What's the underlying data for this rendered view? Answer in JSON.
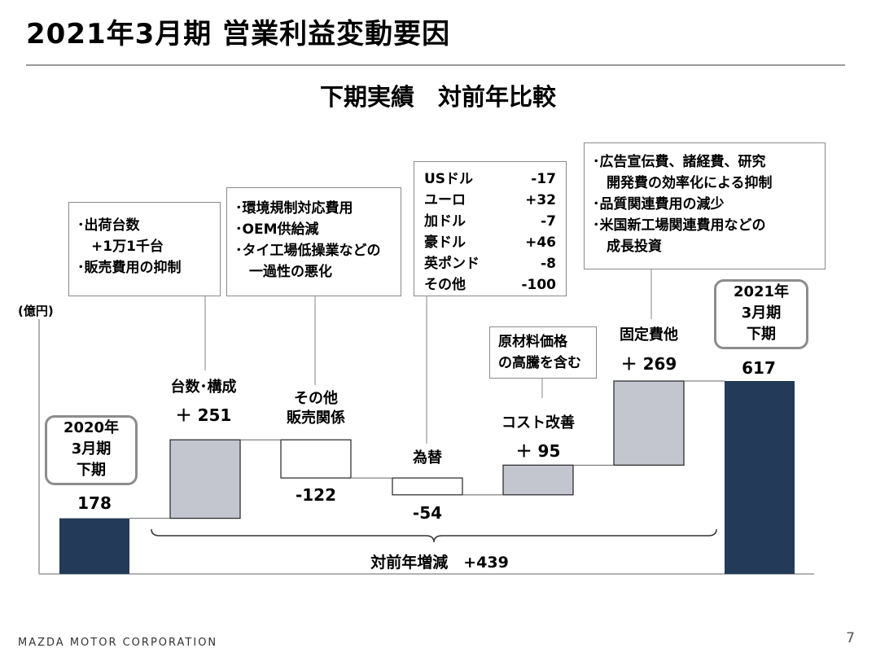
{
  "page": {
    "title": "2021年3月期 営業利益変動要因",
    "subtitle": "下期実績　対前年比較",
    "unit_label": "(億円)",
    "footer": "MAZDA MOTOR CORPORATION",
    "page_number": "7"
  },
  "chart_data": {
    "type": "bar",
    "variant": "waterfall",
    "unit": "(億円)",
    "categories": [
      "2020年3月期下期",
      "台数・構成",
      "その他販売関係",
      "為替",
      "コスト改善",
      "固定費他",
      "2021年3月期下期"
    ],
    "start": 178,
    "deltas": [
      251,
      -122,
      -54,
      95,
      269
    ],
    "end": 617,
    "total_change": 439,
    "colors": {
      "total": "#243a59",
      "increase": "#c3c6cf",
      "decrease": "#ffffff"
    }
  },
  "labels": {
    "start_box": [
      "2020年",
      "3月期",
      "下期"
    ],
    "start_value": "178",
    "vol_title": "台数･構成",
    "vol_value": "＋ 251",
    "other_title": [
      "その他",
      "販売関係"
    ],
    "other_value": "-122",
    "fx_title": "為替",
    "fx_value": "-54",
    "cost_title": "コスト改善",
    "cost_value": "＋ 95",
    "fixed_title": "固定費他",
    "fixed_value": "＋ 269",
    "end_box": [
      "2021年",
      "3月期",
      "下期"
    ],
    "end_value": "617",
    "total_change_label": "対前年増減　+439"
  },
  "notes": {
    "volume": [
      "･出荷台数",
      "　+1万1千台",
      "･販売費用の抑制"
    ],
    "other_sales": [
      "･環境規制対応費用",
      "･OEM供給減",
      "･タイ工場低操業などの",
      "　一過性の悪化"
    ],
    "fx": [
      {
        "currency": "USドル",
        "value": "-17"
      },
      {
        "currency": "ユーロ",
        "value": "+32"
      },
      {
        "currency": "加ドル",
        "value": "-7"
      },
      {
        "currency": "豪ドル",
        "value": "+46"
      },
      {
        "currency": "英ポンド",
        "value": "-8"
      },
      {
        "currency": "その他",
        "value": "-100"
      }
    ],
    "cost": [
      "原材料価格",
      "の高騰を含む"
    ],
    "fixed": [
      "･広告宣伝費、諸経費、研究",
      "　開発費の効率化による抑制",
      "･品質関連費用の減少",
      "･米国新工場関連費用などの",
      "　成長投資"
    ]
  }
}
